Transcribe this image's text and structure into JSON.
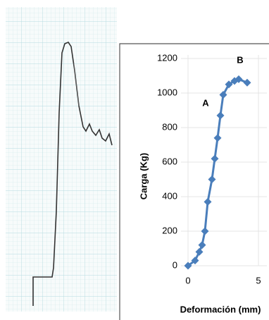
{
  "chart_data": {
    "type": "line",
    "x_label": "Deformación (mm)",
    "y_label": "Carga (Kg)",
    "annotations": [
      "A",
      "B"
    ],
    "series": [
      {
        "color": "#4a7ebb",
        "x": [
          0,
          0.5,
          0.8,
          1.0,
          1.2,
          1.4,
          1.7,
          1.9,
          2.1,
          2.3,
          2.5,
          2.9,
          3.3,
          3.6,
          4.2
        ],
        "values": [
          0,
          30,
          80,
          120,
          200,
          370,
          500,
          620,
          740,
          870,
          990,
          1050,
          1070,
          1080,
          1060
        ]
      }
    ],
    "xlim": [
      0,
      5
    ],
    "xticks": [
      0,
      5
    ],
    "ylim": [
      0,
      1200
    ],
    "yticks": [
      0,
      200,
      400,
      600,
      800,
      1000,
      1200
    ],
    "grid": true
  }
}
